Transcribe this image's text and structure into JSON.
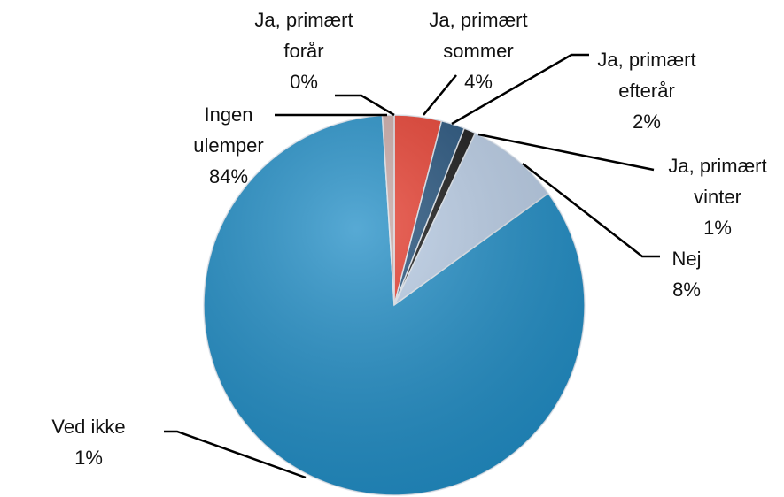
{
  "chart_data": {
    "type": "pie",
    "categories": [
      "Ja, primært forår",
      "Ja, primært sommer",
      "Ja, primært efterår",
      "Ja, primært vinter",
      "Nej",
      "Ingen ulemper",
      "Ved ikke"
    ],
    "values": [
      0,
      4,
      2,
      1,
      8,
      84,
      1
    ],
    "value_labels": [
      "0%",
      "4%",
      "2%",
      "1%",
      "8%",
      "84%",
      "1%"
    ],
    "colors": [
      "#c0504d",
      "#e63a2b",
      "#1f4e79",
      "#111111",
      "#b9cde6",
      "#1f8dc6",
      "#c9a7a4"
    ]
  }
}
